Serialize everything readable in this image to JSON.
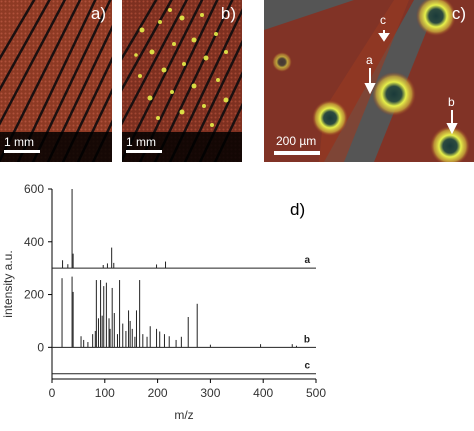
{
  "figure": {
    "panels": [
      {
        "label": "a)",
        "scale_bar": "1 mm"
      },
      {
        "label": "b)",
        "scale_bar": "1 mm"
      },
      {
        "label": "c)",
        "scale_bar": "200 µm",
        "markers": [
          {
            "label": "c"
          },
          {
            "label": "a"
          },
          {
            "label": "b"
          }
        ]
      }
    ],
    "colors": {
      "tissue": "#8a2e1e",
      "background": "#555555",
      "hotspot": "#e6f04a"
    }
  },
  "chart_data": {
    "type": "line",
    "panel_label": "d)",
    "title": "",
    "xlabel": "m/z",
    "ylabel": "intensity a.u.",
    "xlim": [
      0,
      500
    ],
    "ylim": [
      -120,
      600
    ],
    "x_ticks": [
      "0",
      "100",
      "200",
      "300",
      "400",
      "500"
    ],
    "y_ticks": [
      "0",
      "200",
      "400",
      "600"
    ],
    "series": [
      {
        "label": "a",
        "baseline": 300,
        "peaks": [
          [
            20,
            30
          ],
          [
            30,
            15
          ],
          [
            38,
            300
          ],
          [
            40,
            55
          ],
          [
            97,
            12
          ],
          [
            105,
            18
          ],
          [
            113,
            78
          ],
          [
            117,
            20
          ],
          [
            198,
            14
          ],
          [
            215,
            25
          ]
        ]
      },
      {
        "label": "b",
        "baseline": 0,
        "peaks": [
          [
            19,
            262
          ],
          [
            38,
            268
          ],
          [
            40,
            210
          ],
          [
            55,
            42
          ],
          [
            60,
            28
          ],
          [
            68,
            20
          ],
          [
            77,
            50
          ],
          [
            82,
            62
          ],
          [
            84,
            255
          ],
          [
            88,
            110
          ],
          [
            92,
            255
          ],
          [
            95,
            120
          ],
          [
            98,
            232
          ],
          [
            103,
            245
          ],
          [
            108,
            110
          ],
          [
            110,
            70
          ],
          [
            114,
            225
          ],
          [
            118,
            130
          ],
          [
            124,
            50
          ],
          [
            128,
            255
          ],
          [
            134,
            90
          ],
          [
            140,
            62
          ],
          [
            145,
            140
          ],
          [
            148,
            100
          ],
          [
            152,
            70
          ],
          [
            157,
            40
          ],
          [
            160,
            140
          ],
          [
            166,
            255
          ],
          [
            172,
            50
          ],
          [
            180,
            40
          ],
          [
            186,
            80
          ],
          [
            198,
            70
          ],
          [
            204,
            60
          ],
          [
            213,
            50
          ],
          [
            222,
            42
          ],
          [
            235,
            28
          ],
          [
            245,
            40
          ],
          [
            258,
            115
          ],
          [
            275,
            165
          ],
          [
            300,
            10
          ],
          [
            395,
            12
          ],
          [
            455,
            12
          ],
          [
            463,
            6
          ]
        ]
      },
      {
        "label": "c",
        "baseline": -100,
        "peaks": []
      }
    ]
  }
}
